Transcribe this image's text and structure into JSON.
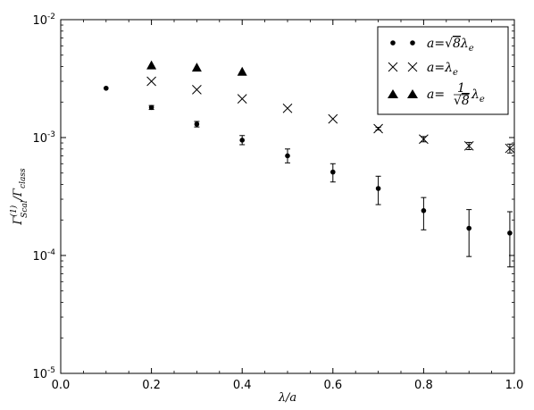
{
  "chart_data": {
    "type": "scatter",
    "title": "",
    "xlabel": "λ/a",
    "ylabel": "Γ(1)Scal/Γclass",
    "ylabel_parts": {
      "base": "Γ",
      "sup": "(1)",
      "sub": "Scal",
      "sep": "/",
      "base2": "Γ",
      "sub2": "class"
    },
    "xlim": [
      0.0,
      1.0
    ],
    "ylim": [
      1e-05,
      0.01
    ],
    "yscale": "log",
    "grid": false,
    "legend_position": "top-right",
    "x_ticks": [
      0.0,
      0.2,
      0.4,
      0.6,
      0.8,
      1.0
    ],
    "x_tick_labels": [
      "0.0",
      "0.2",
      "0.4",
      "0.6",
      "0.8",
      "1.0"
    ],
    "y_ticks": [
      1e-05,
      0.0001,
      0.001,
      0.01
    ],
    "y_tick_labels": [
      {
        "base": "10",
        "exp": "-5"
      },
      {
        "base": "10",
        "exp": "-4"
      },
      {
        "base": "10",
        "exp": "-3"
      },
      {
        "base": "10",
        "exp": "-2"
      }
    ],
    "series": [
      {
        "name": "a=√8λe",
        "legend_parts": {
          "prefix": "a=",
          "radical": "√",
          "radicand": "8",
          "var": "λ",
          "sub": "e"
        },
        "marker": "dot",
        "color": "#000000",
        "x": [
          0.1,
          0.2,
          0.3,
          0.4,
          0.5,
          0.6,
          0.7,
          0.8,
          0.9,
          0.99
        ],
        "y": [
          0.00262,
          0.0018,
          0.0013,
          0.00095,
          0.0007,
          0.00051,
          0.00037,
          0.00024,
          0.00017,
          0.000155
        ],
        "err_low": [
          0.0026,
          0.00173,
          0.00123,
          0.00087,
          0.00061,
          0.00042,
          0.00027,
          0.000165,
          9.8e-05,
          8e-05
        ],
        "err_high": [
          0.00264,
          0.00187,
          0.00137,
          0.00104,
          0.0008,
          0.0006,
          0.00047,
          0.00031,
          0.000245,
          0.000235
        ]
      },
      {
        "name": "a=λe",
        "legend_parts": {
          "prefix": "a=",
          "var": "λ",
          "sub": "e"
        },
        "marker": "x",
        "color": "#000000",
        "x": [
          0.2,
          0.3,
          0.4,
          0.5,
          0.6,
          0.7,
          0.8,
          0.9,
          0.99
        ],
        "y": [
          0.003,
          0.00255,
          0.00213,
          0.00177,
          0.00144,
          0.00119,
          0.00097,
          0.00085,
          0.00081
        ],
        "err_low": [
          0.003,
          0.00255,
          0.00213,
          0.00177,
          0.00144,
          0.00116,
          0.00092,
          0.00079,
          0.00074
        ],
        "err_high": [
          0.003,
          0.00255,
          0.00213,
          0.00177,
          0.00144,
          0.00122,
          0.00102,
          0.00091,
          0.00088
        ]
      },
      {
        "name": "a=(1/√8)λe",
        "legend_parts": {
          "prefix": "a=",
          "num": "1",
          "radical": "√",
          "radicand": "8",
          "var": "λ",
          "sub": "e"
        },
        "marker": "triangle",
        "color": "#000000",
        "x": [
          0.2,
          0.3,
          0.4
        ],
        "y": [
          0.0041,
          0.00392,
          0.00362
        ],
        "err_low": [
          0.0041,
          0.00392,
          0.00362
        ],
        "err_high": [
          0.0041,
          0.00392,
          0.00362
        ]
      }
    ]
  }
}
